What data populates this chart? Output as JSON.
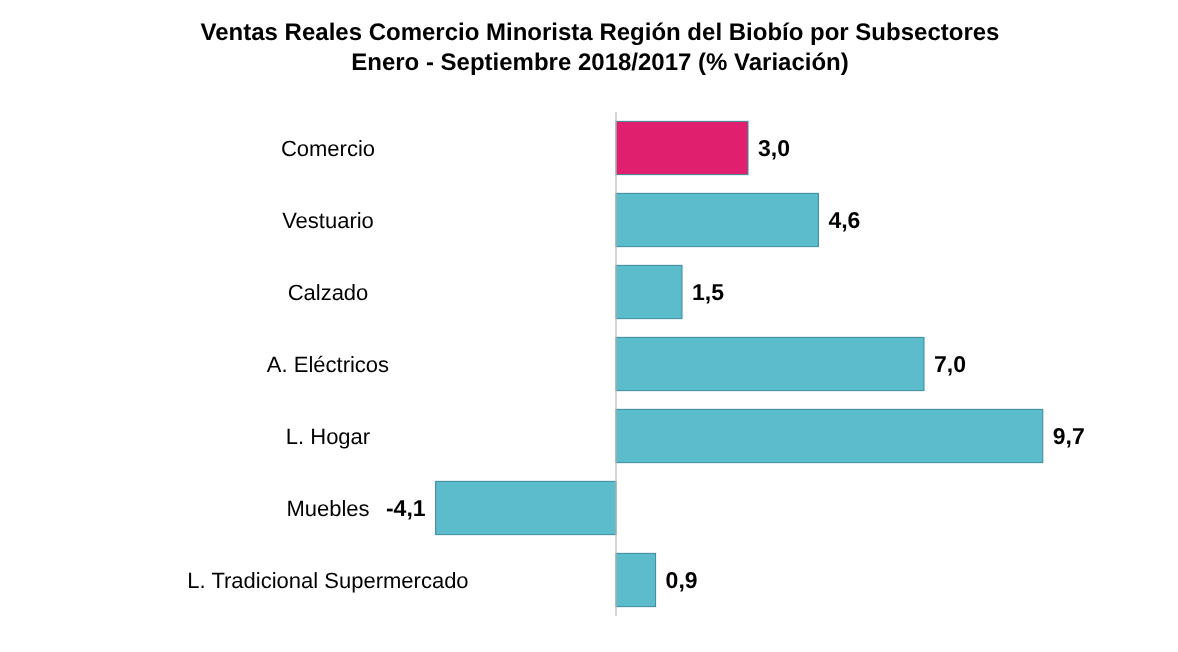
{
  "chart_data": {
    "type": "bar",
    "orientation": "horizontal",
    "title": "Ventas Reales Comercio Minorista Región del Biobío por Subsectores",
    "subtitle": "Enero - Septiembre 2018/2017  (% Variación)",
    "categories": [
      "Comercio",
      "Vestuario",
      "Calzado",
      "A. Eléctricos",
      "L. Hogar",
      "Muebles",
      "L. Tradicional Supermercado"
    ],
    "values": [
      3.0,
      4.6,
      1.5,
      7.0,
      9.7,
      -4.1,
      0.9
    ],
    "value_labels": [
      "3,0",
      "4,6",
      "1,5",
      "7,0",
      "9,7",
      "-4,1",
      "0,9"
    ],
    "colors": [
      "#e0206e",
      "#5cbccb",
      "#5cbccb",
      "#5cbccb",
      "#5cbccb",
      "#5cbccb",
      "#5cbccb"
    ]
  }
}
